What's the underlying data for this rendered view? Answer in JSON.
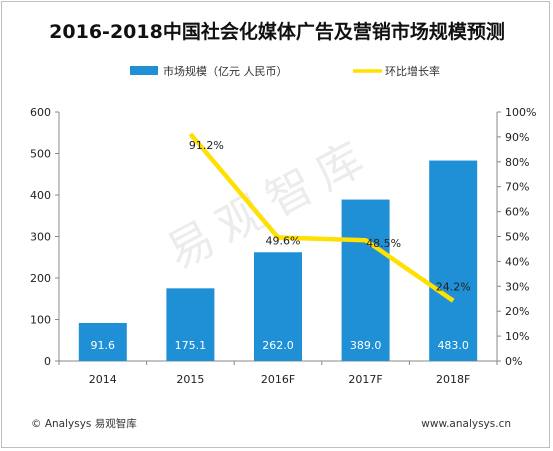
{
  "chart_data": {
    "type": "bar",
    "title": "2016-2018中国社会化媒体广告及营销市场规模预测",
    "categories": [
      "2014",
      "2015",
      "2016F",
      "2017F",
      "2018F"
    ],
    "series": [
      {
        "name": "市场规模（亿元 人民币）",
        "type": "bar",
        "axis": "left",
        "color": "#1f8fd6",
        "values": [
          91.6,
          175.1,
          262.0,
          389.0,
          483.0
        ],
        "labels": [
          "91.6",
          "175.1",
          "262.0",
          "389.0",
          "483.0"
        ]
      },
      {
        "name": "环比增长率",
        "type": "line",
        "axis": "right",
        "color": "#ffe000",
        "values": [
          null,
          91.2,
          49.6,
          48.5,
          24.2
        ],
        "labels": [
          "",
          "91.2%",
          "49.6%",
          "48.5%",
          "24.2%"
        ]
      }
    ],
    "y_left": {
      "ylim": [
        0,
        600
      ],
      "ticks": [
        "0",
        "100",
        "200",
        "300",
        "400",
        "500",
        "600"
      ]
    },
    "y_right": {
      "ylim": [
        0,
        100
      ],
      "ticks": [
        "0%",
        "10%",
        "20%",
        "30%",
        "40%",
        "50%",
        "60%",
        "70%",
        "80%",
        "90%",
        "100%"
      ]
    },
    "grid": false,
    "legend_position": "top-center"
  },
  "watermark": "易观智库",
  "footer": {
    "left": "© Analysys 易观智库",
    "right": "www.analysys.cn"
  }
}
